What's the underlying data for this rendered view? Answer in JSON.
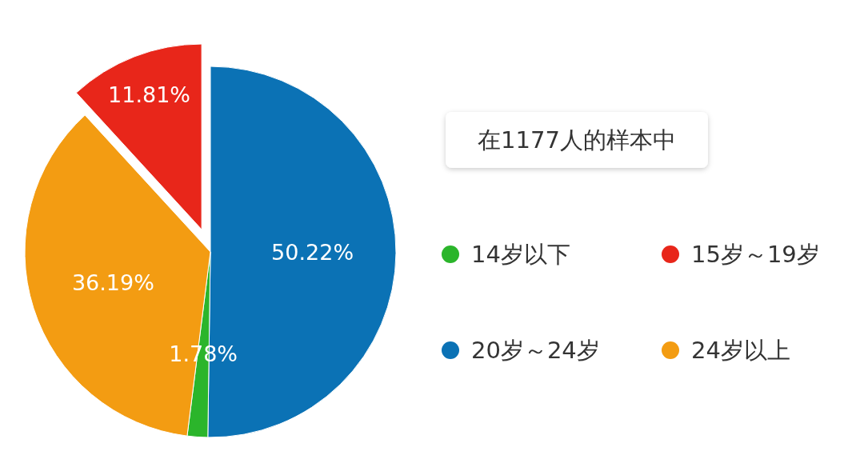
{
  "chart_data": {
    "type": "pie",
    "title": "在1177人的样本中",
    "categories": [
      "20岁～24岁",
      "14岁以下",
      "24岁以上",
      "15岁～19岁"
    ],
    "values": [
      50.22,
      1.78,
      36.19,
      11.81
    ],
    "colors": [
      "#0b72b5",
      "#2bb52b",
      "#f39c12",
      "#e8261a"
    ],
    "value_labels": [
      "50.22%",
      "1.78%",
      "36.19%",
      "11.81%"
    ],
    "legend": "right"
  }
}
